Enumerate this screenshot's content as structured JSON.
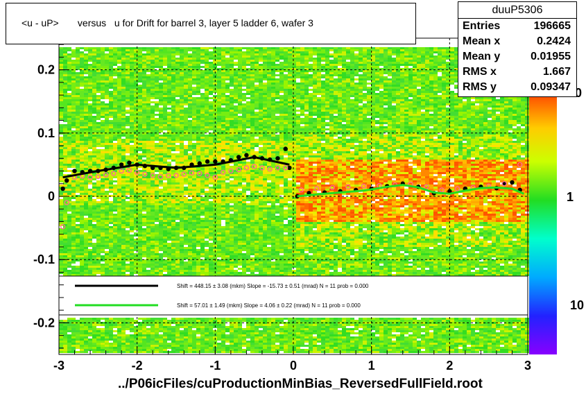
{
  "title": "<u - uP>       versus   u for Drift for barrel 3, layer 5 ladder 6, wafer 3",
  "stats": {
    "name": "duuP5306",
    "rows": [
      {
        "key": "Entries",
        "value": "196665"
      },
      {
        "key": "Mean x",
        "value": "0.2424"
      },
      {
        "key": "Mean y",
        "value": "0.01955"
      },
      {
        "key": "RMS x",
        "value": "1.667"
      },
      {
        "key": "RMS y",
        "value": "0.09347"
      }
    ]
  },
  "fit_legend": [
    {
      "color": "#000000",
      "text": "Shift =   448.15 ± 3.08 (mkm) Slope =   -15.73 ± 0.51 (mrad)  N = 11 prob = 0.000"
    },
    {
      "color": "#22dd22",
      "text": "Shift =    57.01 ± 1.49 (mkm) Slope =     4.06 ± 0.22 (mrad)  N = 11 prob = 0.000"
    }
  ],
  "colorbar": {
    "labels": [
      "1",
      "10"
    ],
    "partial_label": "0"
  },
  "x_axis_title": "../P06icFiles/cuProductionMinBias_ReversedFullField.root",
  "chart_data": {
    "type": "heatmap",
    "xlim": [
      -3,
      3
    ],
    "ylim": [
      -0.25,
      0.25
    ],
    "x_ticks": [
      "-3",
      "-2",
      "-1",
      "0",
      "1",
      "2",
      "3"
    ],
    "y_ticks": [
      "0.2",
      "0.1",
      "0",
      "-0.1",
      "-0.2"
    ],
    "grid": true,
    "series": [
      {
        "name": "black profile",
        "color": "#000000",
        "x": [
          -2.95,
          -2.9,
          -2.8,
          -2.7,
          -2.6,
          -2.5,
          -2.4,
          -2.3,
          -2.2,
          -2.1,
          -2.0,
          -1.9,
          -1.8,
          -1.7,
          -1.6,
          -1.5,
          -1.4,
          -1.3,
          -1.2,
          -1.1,
          -1.0,
          -0.9,
          -0.8,
          -0.7,
          -0.6,
          -0.5,
          -0.4,
          -0.3,
          -0.2,
          -0.1,
          -0.05,
          0.05,
          0.2,
          0.4,
          0.6,
          0.8,
          1.0,
          1.2,
          1.4,
          1.6,
          1.8,
          2.0,
          2.2,
          2.4,
          2.6,
          2.7,
          2.8,
          2.9
        ],
        "y": [
          0.012,
          0.025,
          0.04,
          0.038,
          0.04,
          0.04,
          0.042,
          0.045,
          0.05,
          0.053,
          0.05,
          0.048,
          0.045,
          0.045,
          0.043,
          0.045,
          0.045,
          0.05,
          0.052,
          0.055,
          0.055,
          0.055,
          0.057,
          0.062,
          0.065,
          0.062,
          0.06,
          0.058,
          0.06,
          0.075,
          0.045,
          0.0,
          0.005,
          0.006,
          0.008,
          0.01,
          0.012,
          0.016,
          0.02,
          0.015,
          0.005,
          0.008,
          0.012,
          0.015,
          0.013,
          0.02,
          0.022,
          0.01
        ]
      },
      {
        "name": "pink profile",
        "color": "#ff6699",
        "x": [
          -2.95,
          -2.9,
          -2.8,
          -2.7,
          -2.6,
          -2.5,
          -2.4,
          -2.3,
          -2.2,
          -2.1,
          -2.0,
          -1.9,
          -1.8,
          -1.7,
          -1.6,
          -1.5,
          -1.4,
          -1.3,
          -1.2,
          -1.1,
          -1.0,
          -0.9,
          -0.8,
          -0.7,
          -0.6,
          -0.5,
          -0.4,
          -0.3,
          -0.2,
          -0.1,
          0.1,
          0.3,
          0.5,
          0.7,
          0.9,
          1.1,
          1.3,
          1.5,
          1.7,
          1.9,
          2.1,
          2.3,
          2.5,
          2.7,
          2.9
        ],
        "y": [
          -0.048,
          -0.01,
          0.03,
          0.032,
          0.03,
          0.031,
          0.034,
          0.036,
          0.04,
          0.041,
          0.038,
          0.035,
          0.033,
          0.031,
          0.033,
          0.033,
          0.035,
          0.037,
          0.036,
          0.033,
          0.03,
          0.038,
          0.04,
          0.042,
          0.045,
          0.047,
          0.045,
          0.043,
          0.045,
          0.045,
          0.01,
          0.012,
          0.014,
          0.015,
          0.016,
          0.017,
          0.018,
          0.019,
          0.015,
          0.01,
          0.012,
          0.014,
          0.016,
          0.02,
          0.05
        ]
      },
      {
        "name": "black fit",
        "color": "#000000",
        "x": [
          -2.95,
          -2.5,
          -2.0,
          -1.5,
          -1.0,
          -0.5,
          -0.05
        ],
        "y": [
          0.03,
          0.04,
          0.05,
          0.045,
          0.05,
          0.062,
          0.05
        ]
      },
      {
        "name": "green fit",
        "color": "#22dd22",
        "x": [
          0.05,
          0.3,
          0.6,
          0.9,
          1.2,
          1.4,
          1.6,
          1.8,
          2.0,
          2.2,
          2.4,
          2.6,
          2.8,
          2.95
        ],
        "y": [
          0.0,
          0.003,
          0.006,
          0.009,
          0.015,
          0.018,
          0.014,
          0.006,
          0.004,
          0.009,
          0.013,
          0.014,
          0.012,
          0.004
        ]
      }
    ]
  }
}
